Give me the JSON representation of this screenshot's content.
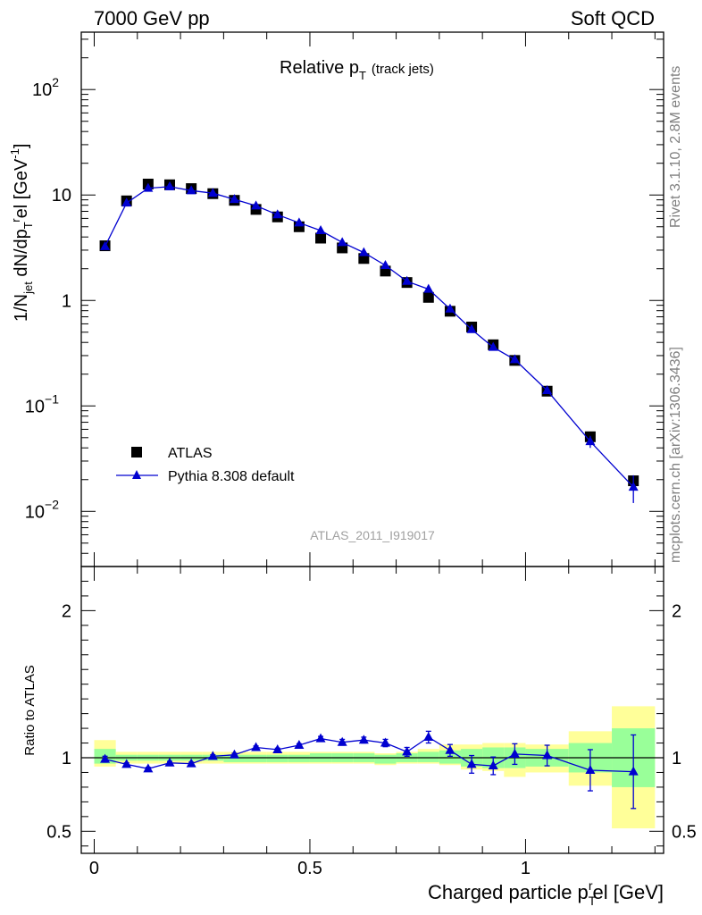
{
  "header": {
    "left": "7000 GeV pp",
    "right": "Soft QCD",
    "side_top": "Rivet 3.1.10,  2.8M events",
    "side_bottom": "mcplots.cern.ch [arXiv:1306.3436]"
  },
  "chart_data": [
    {
      "type": "scatter",
      "panel": "main",
      "title": "Relative p",
      "title_sub": "T",
      "title_suffix": "(track jets)",
      "ylabel": "1/N",
      "ylabel_parts": [
        "1/N",
        "jet",
        " dN/dp",
        "T",
        "r",
        "el [GeV",
        "-1",
        "]"
      ],
      "yscale": "log",
      "ylim": [
        0.003,
        350
      ],
      "xlim": [
        -0.03,
        1.32
      ],
      "y_ticks": [
        {
          "v": 100,
          "base": "10",
          "exp": "2"
        },
        {
          "v": 10,
          "base": "10",
          "exp": ""
        },
        {
          "v": 1,
          "base": "1",
          "exp": ""
        },
        {
          "v": 0.1,
          "base": "10",
          "exp": "−1"
        },
        {
          "v": 0.01,
          "base": "10",
          "exp": "−2"
        }
      ],
      "watermark": "ATLAS_2011_I919017",
      "legend": {
        "position": "lower-left",
        "entries": [
          {
            "label": "ATLAS",
            "marker": "square",
            "color": "#000000"
          },
          {
            "label": "Pythia 8.308 default",
            "marker": "triangle",
            "color": "#0000d0"
          }
        ]
      },
      "x": [
        0.025,
        0.075,
        0.125,
        0.175,
        0.225,
        0.275,
        0.325,
        0.375,
        0.425,
        0.475,
        0.525,
        0.575,
        0.625,
        0.675,
        0.725,
        0.775,
        0.825,
        0.875,
        0.925,
        0.975,
        1.05,
        1.15,
        1.25
      ],
      "series": [
        {
          "name": "ATLAS",
          "color": "#000000",
          "values": [
            3.3,
            8.8,
            12.7,
            12.5,
            11.5,
            10.3,
            8.9,
            7.3,
            6.2,
            5.0,
            3.9,
            3.15,
            2.5,
            1.9,
            1.48,
            1.07,
            0.79,
            0.56,
            0.38,
            0.27,
            0.138,
            0.051,
            0.0195
          ]
        },
        {
          "name": "Pythia 8.308 default",
          "color": "#0000d0",
          "values": [
            3.25,
            8.4,
            11.6,
            12.0,
            11.0,
            10.4,
            9.1,
            7.9,
            6.5,
            5.45,
            4.6,
            3.55,
            2.85,
            2.15,
            1.52,
            1.28,
            0.83,
            0.53,
            0.36,
            0.275,
            0.14,
            0.046,
            0.017
          ],
          "err": [
            0.05,
            0.15,
            0.2,
            0.2,
            0.2,
            0.2,
            0.15,
            0.15,
            0.1,
            0.1,
            0.08,
            0.06,
            0.05,
            0.04,
            0.03,
            0.03,
            0.02,
            0.015,
            0.012,
            0.01,
            0.006,
            0.006,
            0.005
          ]
        }
      ]
    },
    {
      "type": "line",
      "panel": "ratio",
      "ylabel": "Ratio to ATLAS",
      "ylim": [
        0.35,
        2.3
      ],
      "xlim": [
        -0.03,
        1.32
      ],
      "y_ticks": [
        0.5,
        1,
        2
      ],
      "x_ticks": [
        0,
        0.5,
        1
      ],
      "xlabel": "Charged particle p",
      "xlabel_sub": "T",
      "xlabel_sup": "r",
      "xlabel_suffix": "el [GeV]",
      "bands": {
        "edges": [
          0,
          0.05,
          0.1,
          0.15,
          0.2,
          0.25,
          0.3,
          0.35,
          0.4,
          0.45,
          0.5,
          0.55,
          0.6,
          0.65,
          0.7,
          0.75,
          0.8,
          0.85,
          0.9,
          0.95,
          1.0,
          1.1,
          1.2,
          1.3
        ],
        "inner": [
          [
            0.96,
            1.06
          ],
          [
            0.98,
            1.02
          ],
          [
            0.98,
            1.02
          ],
          [
            0.98,
            1.02
          ],
          [
            0.98,
            1.02
          ],
          [
            0.98,
            1.02
          ],
          [
            0.97,
            1.02
          ],
          [
            0.97,
            1.02
          ],
          [
            0.97,
            1.02
          ],
          [
            0.97,
            1.02
          ],
          [
            0.97,
            1.03
          ],
          [
            0.97,
            1.03
          ],
          [
            0.97,
            1.03
          ],
          [
            0.96,
            1.02
          ],
          [
            0.97,
            1.03
          ],
          [
            0.97,
            1.04
          ],
          [
            0.96,
            1.05
          ],
          [
            0.94,
            1.06
          ],
          [
            0.93,
            1.07
          ],
          [
            0.93,
            1.07
          ],
          [
            0.94,
            1.06
          ],
          [
            0.9,
            1.1
          ],
          [
            0.8,
            1.2
          ],
          [
            0.8,
            1.23
          ]
        ],
        "outer": [
          [
            0.94,
            1.12
          ],
          [
            0.96,
            1.04
          ],
          [
            0.96,
            1.04
          ],
          [
            0.96,
            1.04
          ],
          [
            0.96,
            1.04
          ],
          [
            0.96,
            1.04
          ],
          [
            0.96,
            1.04
          ],
          [
            0.96,
            1.04
          ],
          [
            0.96,
            1.04
          ],
          [
            0.96,
            1.04
          ],
          [
            0.96,
            1.04
          ],
          [
            0.96,
            1.04
          ],
          [
            0.96,
            1.04
          ],
          [
            0.95,
            1.03
          ],
          [
            0.96,
            1.04
          ],
          [
            0.96,
            1.06
          ],
          [
            0.95,
            1.09
          ],
          [
            0.92,
            1.09
          ],
          [
            0.91,
            1.1
          ],
          [
            0.87,
            1.1
          ],
          [
            0.9,
            1.09
          ],
          [
            0.81,
            1.18
          ],
          [
            0.52,
            1.35
          ],
          [
            0.52,
            1.35
          ]
        ]
      },
      "series": [
        {
          "name": "Pythia 8.308 default",
          "color": "#0000d0",
          "x": [
            0.025,
            0.075,
            0.125,
            0.175,
            0.225,
            0.275,
            0.325,
            0.375,
            0.425,
            0.475,
            0.525,
            0.575,
            0.625,
            0.675,
            0.725,
            0.775,
            0.825,
            0.875,
            0.925,
            0.975,
            1.05,
            1.15,
            1.25
          ],
          "values": [
            0.99,
            0.955,
            0.925,
            0.965,
            0.96,
            1.01,
            1.02,
            1.07,
            1.055,
            1.085,
            1.13,
            1.105,
            1.12,
            1.1,
            1.04,
            1.14,
            1.05,
            0.955,
            0.945,
            1.025,
            1.015,
            0.915,
            0.905
          ],
          "err": [
            0.02,
            0.01,
            0.01,
            0.01,
            0.01,
            0.01,
            0.01,
            0.01,
            0.01,
            0.01,
            0.015,
            0.02,
            0.02,
            0.025,
            0.03,
            0.04,
            0.04,
            0.06,
            0.06,
            0.07,
            0.07,
            0.14,
            0.25
          ]
        }
      ]
    }
  ]
}
